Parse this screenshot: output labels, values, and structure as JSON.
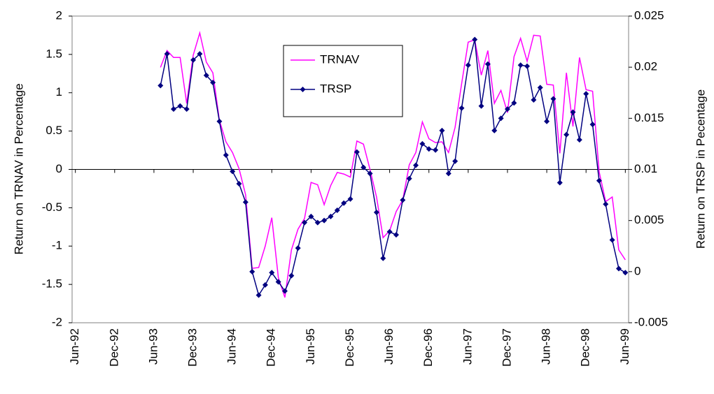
{
  "chart_data": {
    "type": "line",
    "y_label": "Return on TRNAV in Percentage",
    "y2_label": "Return on TRSP in Pecentage",
    "categories": [
      "Jun-92",
      null,
      null,
      null,
      null,
      null,
      "Dec-92",
      null,
      null,
      null,
      null,
      null,
      "Jun-93",
      null,
      null,
      null,
      null,
      null,
      "Dec-93",
      null,
      null,
      null,
      null,
      null,
      "Jun-94",
      null,
      null,
      null,
      null,
      null,
      "Dec-94",
      null,
      null,
      null,
      null,
      null,
      "Jun-95",
      null,
      null,
      null,
      null,
      null,
      "Dec-95",
      null,
      null,
      null,
      null,
      null,
      "Jun-96",
      null,
      null,
      null,
      null,
      null,
      "Dec-96",
      null,
      null,
      null,
      null,
      null,
      "Jun-97",
      null,
      null,
      null,
      null,
      null,
      "Dec-97",
      null,
      null,
      null,
      null,
      null,
      "Jun-98",
      null,
      null,
      null,
      null,
      null,
      "Dec-98",
      null,
      null,
      null,
      null,
      null,
      "Jun-99"
    ],
    "series": [
      {
        "name": "TRNAV",
        "color": "#ff00ff",
        "axis": "y",
        "marker": false,
        "values": [
          null,
          null,
          null,
          null,
          null,
          null,
          null,
          null,
          null,
          null,
          null,
          null,
          null,
          1.33,
          1.55,
          1.46,
          1.46,
          0.86,
          1.49,
          1.78,
          1.4,
          1.26,
          0.64,
          0.36,
          0.22,
          0.01,
          -0.33,
          -1.29,
          -1.28,
          -1.0,
          -0.63,
          -1.41,
          -1.67,
          -1.05,
          -0.78,
          -0.64,
          -0.17,
          -0.2,
          -0.46,
          -0.21,
          -0.04,
          -0.06,
          -0.1,
          0.37,
          0.33,
          0.0,
          -0.36,
          -0.89,
          -0.8,
          -0.55,
          -0.4,
          0.06,
          0.22,
          0.62,
          0.4,
          0.35,
          0.36,
          0.22,
          0.55,
          1.12,
          1.66,
          1.69,
          1.23,
          1.55,
          0.86,
          1.03,
          0.74,
          1.47,
          1.71,
          1.41,
          1.75,
          1.74,
          1.11,
          1.1,
          0.21,
          1.26,
          0.56,
          1.46,
          1.04,
          1.02,
          -0.03,
          -0.42,
          -0.36,
          -1.05,
          -1.18
        ]
      },
      {
        "name": "TRSP",
        "color": "#000080",
        "axis": "y2",
        "marker": true,
        "values": [
          null,
          null,
          null,
          null,
          null,
          null,
          null,
          null,
          null,
          null,
          null,
          null,
          null,
          0.0182,
          0.0213,
          0.0159,
          0.0162,
          0.0159,
          0.0207,
          0.0213,
          0.0192,
          0.0185,
          0.0147,
          0.0114,
          0.0098,
          0.0086,
          0.0068,
          0.0,
          -0.0023,
          -0.0013,
          -0.0001,
          -0.001,
          -0.0019,
          -0.0004,
          0.0023,
          0.0048,
          0.0054,
          0.0048,
          0.005,
          0.0054,
          0.006,
          0.0067,
          0.0071,
          0.0117,
          0.0102,
          0.0096,
          0.0058,
          0.0013,
          0.0039,
          0.0036,
          0.007,
          0.0091,
          0.0104,
          0.0125,
          0.012,
          0.0119,
          0.0138,
          0.0096,
          0.0108,
          0.016,
          0.0202,
          0.0227,
          0.0162,
          0.0203,
          0.0138,
          0.015,
          0.0159,
          0.0165,
          0.0202,
          0.0201,
          0.0168,
          0.018,
          0.0147,
          0.0169,
          0.0087,
          0.0134,
          0.0156,
          0.0129,
          0.0174,
          0.0144,
          0.0089,
          0.0066,
          0.0031,
          0.0003,
          -0.0001
        ]
      }
    ],
    "ylim": [
      -2,
      2
    ],
    "yticks": [
      -2,
      -1.5,
      -1,
      -0.5,
      0,
      0.5,
      1,
      1.5,
      2
    ],
    "y2lim": [
      -0.005,
      0.025
    ],
    "y2ticks": [
      -0.005,
      0,
      0.005,
      0.01,
      0.015,
      0.02,
      0.025
    ],
    "legend": "top",
    "grid": false
  }
}
